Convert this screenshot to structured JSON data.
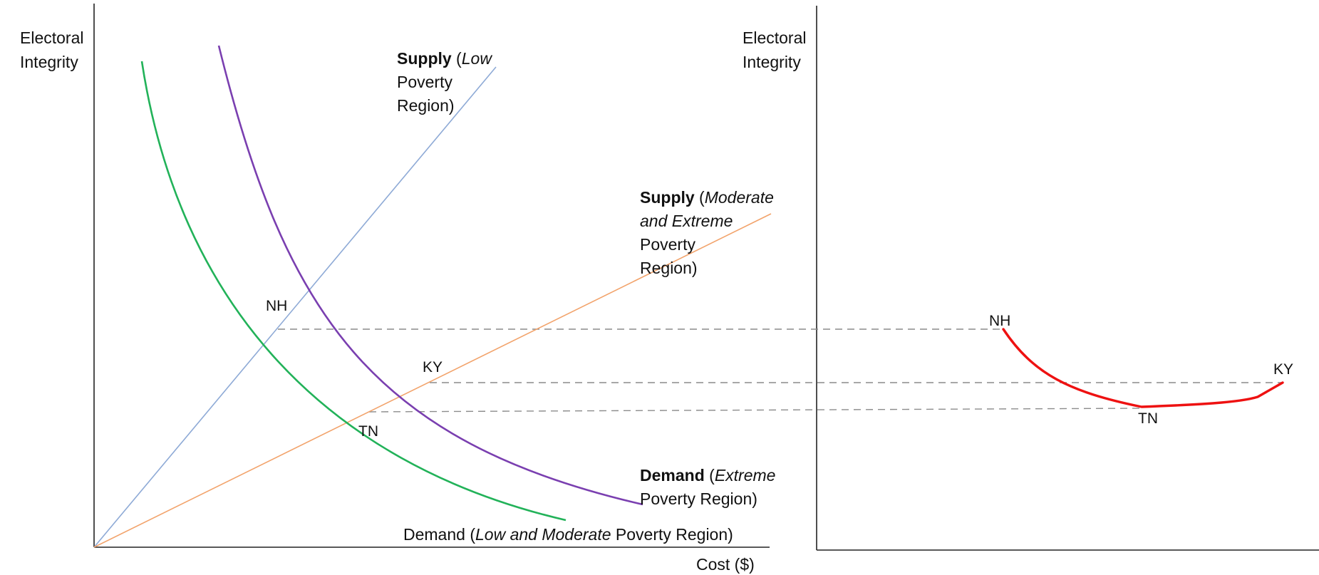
{
  "colors": {
    "axis": "#222222",
    "supply_low": "#8eaad6",
    "supply_moderate": "#f2a36b",
    "demand_extreme": "#7a3fb0",
    "demand_low_moderate": "#22b259",
    "outcome_curve": "#ee1111",
    "guide": "#8c8c8c"
  },
  "left_panel": {
    "y_axis_label": [
      "Electoral",
      "Integrity"
    ],
    "x_axis_label": "Cost ($)",
    "supply_low": {
      "bold": "Supply",
      "rest": [
        " (",
        "Low",
        ""
      ],
      "lines": [
        "Poverty",
        "Region)"
      ]
    },
    "supply_moderate": {
      "bold": "Supply",
      "open": " (",
      "italic1": "Moderate",
      "italic2": "and Extreme",
      "lines": [
        "Poverty",
        "Region)"
      ]
    },
    "demand_extreme": {
      "bold": "Demand",
      "open": " (",
      "italic": "Extreme",
      "line2": "Poverty Region)"
    },
    "demand_low_moderate": {
      "pre": "Demand (",
      "italic": "Low and Moderate",
      "post": " Poverty Region)"
    },
    "points": {
      "nh": "NH",
      "ky": "KY",
      "tn": "TN"
    }
  },
  "right_panel": {
    "y_axis_label": [
      "Electoral",
      "Integrity"
    ],
    "points": {
      "nh": "NH",
      "ky": "KY",
      "tn": "TN"
    }
  }
}
